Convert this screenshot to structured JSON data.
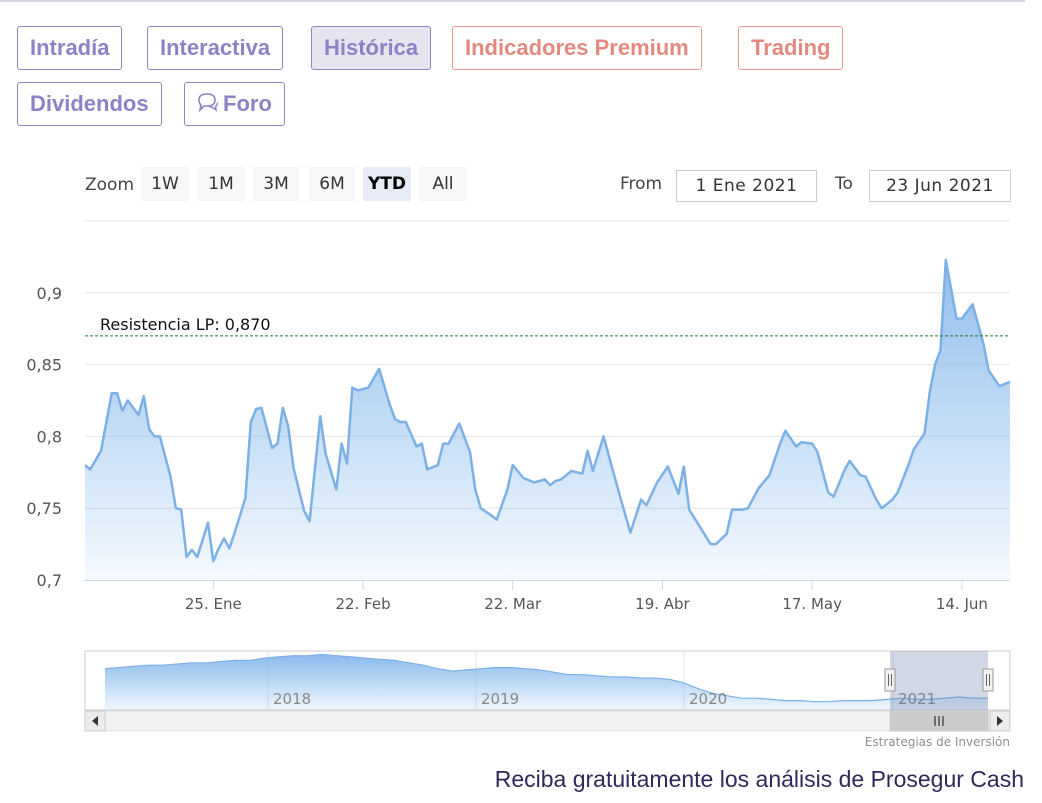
{
  "tabs": [
    {
      "label": "Intradía",
      "style": "normal"
    },
    {
      "label": "Interactiva",
      "style": "normal"
    },
    {
      "label": "Histórica",
      "style": "active"
    },
    {
      "label": "Indicadores Premium",
      "style": "premium"
    },
    {
      "label": "Trading",
      "style": "premium"
    },
    {
      "label": "Dividendos",
      "style": "normal"
    },
    {
      "label": "Foro",
      "style": "normal",
      "icon": "chat-bubble-icon"
    }
  ],
  "range_selector": {
    "zoom_label": "Zoom",
    "buttons": [
      "1W",
      "1M",
      "3M",
      "6M",
      "YTD",
      "All"
    ],
    "selected": "YTD",
    "from_label": "From",
    "from_value": "1 Ene 2021",
    "to_label": "To",
    "to_value": "23 Jun 2021"
  },
  "chart_data": {
    "type": "area",
    "x_range": [
      "2021-01-01",
      "2021-06-23"
    ],
    "ylim": [
      0.7,
      0.95
    ],
    "y_ticks": [
      0.7,
      0.75,
      0.8,
      0.85,
      0.9
    ],
    "y_tick_labels": [
      "0,7",
      "0,75",
      "0,8",
      "0,85",
      "0,9"
    ],
    "x_ticks": [
      {
        "date": "2021-01-25",
        "label": "25. Ene"
      },
      {
        "date": "2021-02-22",
        "label": "22. Feb"
      },
      {
        "date": "2021-03-22",
        "label": "22. Mar"
      },
      {
        "date": "2021-04-19",
        "label": "19. Abr"
      },
      {
        "date": "2021-05-17",
        "label": "17. May"
      },
      {
        "date": "2021-06-14",
        "label": "14. Jun"
      }
    ],
    "grid": true,
    "resistance": {
      "label": "Resistencia LP: 0,870",
      "value": 0.87
    },
    "series": [
      {
        "values": [
          [
            "2021-01-01",
            0.78
          ],
          [
            "2021-01-02",
            0.777
          ],
          [
            "2021-01-04",
            0.79
          ],
          [
            "2021-01-05",
            0.81
          ],
          [
            "2021-01-06",
            0.83
          ],
          [
            "2021-01-07",
            0.83
          ],
          [
            "2021-01-08",
            0.818
          ],
          [
            "2021-01-09",
            0.825
          ],
          [
            "2021-01-11",
            0.815
          ],
          [
            "2021-01-12",
            0.828
          ],
          [
            "2021-01-13",
            0.805
          ],
          [
            "2021-01-14",
            0.8
          ],
          [
            "2021-01-15",
            0.8
          ],
          [
            "2021-01-17",
            0.772
          ],
          [
            "2021-01-18",
            0.75
          ],
          [
            "2021-01-19",
            0.749
          ],
          [
            "2021-01-20",
            0.716
          ],
          [
            "2021-01-21",
            0.721
          ],
          [
            "2021-01-22",
            0.716
          ],
          [
            "2021-01-24",
            0.74
          ],
          [
            "2021-01-25",
            0.713
          ],
          [
            "2021-01-26",
            0.722
          ],
          [
            "2021-01-27",
            0.729
          ],
          [
            "2021-01-28",
            0.722
          ],
          [
            "2021-01-29",
            0.733
          ],
          [
            "2021-01-31",
            0.757
          ],
          [
            "2021-02-01",
            0.81
          ],
          [
            "2021-02-02",
            0.819
          ],
          [
            "2021-02-03",
            0.82
          ],
          [
            "2021-02-05",
            0.792
          ],
          [
            "2021-02-06",
            0.795
          ],
          [
            "2021-02-07",
            0.82
          ],
          [
            "2021-02-08",
            0.807
          ],
          [
            "2021-02-09",
            0.778
          ],
          [
            "2021-02-11",
            0.748
          ],
          [
            "2021-02-12",
            0.741
          ],
          [
            "2021-02-14",
            0.814
          ],
          [
            "2021-02-15",
            0.788
          ],
          [
            "2021-02-17",
            0.763
          ],
          [
            "2021-02-18",
            0.795
          ],
          [
            "2021-02-19",
            0.781
          ],
          [
            "2021-02-20",
            0.834
          ],
          [
            "2021-02-21",
            0.832
          ],
          [
            "2021-02-23",
            0.834
          ],
          [
            "2021-02-25",
            0.847
          ],
          [
            "2021-02-27",
            0.822
          ],
          [
            "2021-02-28",
            0.812
          ],
          [
            "2021-03-01",
            0.81
          ],
          [
            "2021-03-02",
            0.81
          ],
          [
            "2021-03-04",
            0.793
          ],
          [
            "2021-03-05",
            0.795
          ],
          [
            "2021-03-06",
            0.777
          ],
          [
            "2021-03-08",
            0.78
          ],
          [
            "2021-03-09",
            0.795
          ],
          [
            "2021-03-10",
            0.795
          ],
          [
            "2021-03-12",
            0.809
          ],
          [
            "2021-03-14",
            0.789
          ],
          [
            "2021-03-15",
            0.763
          ],
          [
            "2021-03-16",
            0.75
          ],
          [
            "2021-03-18",
            0.745
          ],
          [
            "2021-03-19",
            0.742
          ],
          [
            "2021-03-21",
            0.763
          ],
          [
            "2021-03-22",
            0.78
          ],
          [
            "2021-03-24",
            0.771
          ],
          [
            "2021-03-26",
            0.768
          ],
          [
            "2021-03-28",
            0.77
          ],
          [
            "2021-03-29",
            0.766
          ],
          [
            "2021-03-30",
            0.769
          ],
          [
            "2021-03-31",
            0.77
          ],
          [
            "2021-04-02",
            0.776
          ],
          [
            "2021-04-04",
            0.774
          ],
          [
            "2021-04-05",
            0.79
          ],
          [
            "2021-04-06",
            0.776
          ],
          [
            "2021-04-08",
            0.8
          ],
          [
            "2021-04-09",
            0.786
          ],
          [
            "2021-04-11",
            0.759
          ],
          [
            "2021-04-13",
            0.733
          ],
          [
            "2021-04-15",
            0.756
          ],
          [
            "2021-04-16",
            0.752
          ],
          [
            "2021-04-18",
            0.768
          ],
          [
            "2021-04-20",
            0.779
          ],
          [
            "2021-04-22",
            0.76
          ],
          [
            "2021-04-23",
            0.779
          ],
          [
            "2021-04-24",
            0.749
          ],
          [
            "2021-04-26",
            0.737
          ],
          [
            "2021-04-28",
            0.725
          ],
          [
            "2021-04-29",
            0.725
          ],
          [
            "2021-05-01",
            0.732
          ],
          [
            "2021-05-02",
            0.749
          ],
          [
            "2021-05-04",
            0.749
          ],
          [
            "2021-05-05",
            0.75
          ],
          [
            "2021-05-07",
            0.764
          ],
          [
            "2021-05-09",
            0.773
          ],
          [
            "2021-05-11",
            0.795
          ],
          [
            "2021-05-12",
            0.804
          ],
          [
            "2021-05-14",
            0.793
          ],
          [
            "2021-05-15",
            0.796
          ],
          [
            "2021-05-17",
            0.795
          ],
          [
            "2021-05-18",
            0.789
          ],
          [
            "2021-05-20",
            0.761
          ],
          [
            "2021-05-21",
            0.758
          ],
          [
            "2021-05-23",
            0.776
          ],
          [
            "2021-05-24",
            0.783
          ],
          [
            "2021-05-26",
            0.773
          ],
          [
            "2021-05-27",
            0.772
          ],
          [
            "2021-05-29",
            0.756
          ],
          [
            "2021-05-30",
            0.75
          ],
          [
            "2021-06-01",
            0.756
          ],
          [
            "2021-06-02",
            0.761
          ],
          [
            "2021-06-04",
            0.78
          ],
          [
            "2021-06-05",
            0.791
          ],
          [
            "2021-06-07",
            0.802
          ],
          [
            "2021-06-08",
            0.831
          ],
          [
            "2021-06-09",
            0.85
          ],
          [
            "2021-06-10",
            0.86
          ],
          [
            "2021-06-11",
            0.923
          ],
          [
            "2021-06-13",
            0.882
          ],
          [
            "2021-06-14",
            0.882
          ],
          [
            "2021-06-16",
            0.892
          ],
          [
            "2021-06-18",
            0.865
          ],
          [
            "2021-06-19",
            0.846
          ],
          [
            "2021-06-21",
            0.835
          ],
          [
            "2021-06-23",
            0.838
          ]
        ]
      }
    ],
    "navigator": {
      "year_labels": [
        "2018",
        "2019",
        "2020",
        "2021"
      ],
      "values": [
        0.85,
        0.86,
        0.87,
        0.88,
        0.88,
        0.89,
        0.9,
        0.9,
        0.91,
        0.92,
        0.92,
        0.94,
        0.95,
        0.96,
        0.96,
        0.97,
        0.96,
        0.95,
        0.94,
        0.93,
        0.92,
        0.9,
        0.88,
        0.85,
        0.83,
        0.84,
        0.85,
        0.86,
        0.86,
        0.85,
        0.84,
        0.82,
        0.8,
        0.8,
        0.79,
        0.78,
        0.78,
        0.77,
        0.77,
        0.76,
        0.73,
        0.68,
        0.64,
        0.62,
        0.6,
        0.6,
        0.59,
        0.58,
        0.58,
        0.57,
        0.57,
        0.58,
        0.58,
        0.58,
        0.59,
        0.6,
        0.59,
        0.59,
        0.6,
        0.61,
        0.6,
        0.6
      ]
    }
  },
  "credits": "Estrategias de Inversión",
  "cta": "Reciba gratuitamente los análisis de Prosegur Cash"
}
